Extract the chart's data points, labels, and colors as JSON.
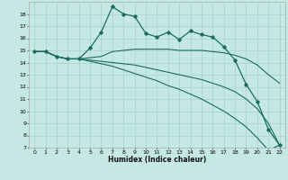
{
  "xlabel": "Humidex (Indice chaleur)",
  "ylabel": "",
  "bg_color": "#c5e8e5",
  "grid_color": "#aed4d0",
  "line_color": "#1a6b60",
  "xlim": [
    -0.5,
    22.5
  ],
  "ylim": [
    7,
    19
  ],
  "yticks": [
    7,
    8,
    9,
    10,
    11,
    12,
    13,
    14,
    15,
    16,
    17,
    18
  ],
  "xticks": [
    0,
    1,
    2,
    3,
    4,
    5,
    6,
    7,
    8,
    9,
    10,
    11,
    12,
    13,
    14,
    15,
    16,
    17,
    18,
    19,
    20,
    21,
    22
  ],
  "series": [
    {
      "x": [
        0,
        1,
        2,
        3,
        4,
        5,
        6,
        7,
        8,
        9,
        10,
        11,
        12,
        13,
        14,
        15,
        16,
        17,
        18,
        19,
        20,
        21,
        22
      ],
      "y": [
        14.9,
        14.9,
        14.5,
        14.3,
        14.3,
        15.2,
        16.5,
        18.6,
        18.0,
        17.8,
        16.4,
        16.1,
        16.5,
        15.9,
        16.6,
        16.3,
        16.1,
        15.3,
        14.2,
        12.2,
        10.8,
        8.5,
        7.2
      ],
      "marker": "D",
      "markersize": 1.8,
      "linewidth": 0.9
    },
    {
      "x": [
        0,
        1,
        2,
        3,
        4,
        5,
        6,
        7,
        8,
        9,
        10,
        11,
        12,
        13,
        14,
        15,
        16,
        17,
        18,
        19,
        20,
        21,
        22
      ],
      "y": [
        14.9,
        14.9,
        14.5,
        14.3,
        14.3,
        14.4,
        14.5,
        14.9,
        15.0,
        15.1,
        15.1,
        15.1,
        15.1,
        15.0,
        15.0,
        15.0,
        14.9,
        14.8,
        14.6,
        14.3,
        13.8,
        13.0,
        12.3
      ],
      "marker": null,
      "markersize": 0,
      "linewidth": 0.8
    },
    {
      "x": [
        0,
        1,
        2,
        3,
        4,
        5,
        6,
        7,
        8,
        9,
        10,
        11,
        12,
        13,
        14,
        15,
        16,
        17,
        18,
        19,
        20,
        21,
        22
      ],
      "y": [
        14.9,
        14.9,
        14.5,
        14.3,
        14.3,
        14.2,
        14.1,
        14.0,
        13.9,
        13.8,
        13.6,
        13.4,
        13.2,
        13.0,
        12.8,
        12.6,
        12.3,
        12.0,
        11.6,
        11.0,
        10.2,
        9.0,
        7.2
      ],
      "marker": null,
      "markersize": 0,
      "linewidth": 0.8
    },
    {
      "x": [
        0,
        1,
        2,
        3,
        4,
        5,
        6,
        7,
        8,
        9,
        10,
        11,
        12,
        13,
        14,
        15,
        16,
        17,
        18,
        19,
        20,
        21,
        22
      ],
      "y": [
        14.9,
        14.9,
        14.5,
        14.3,
        14.3,
        14.1,
        13.9,
        13.7,
        13.4,
        13.1,
        12.8,
        12.5,
        12.1,
        11.8,
        11.4,
        11.0,
        10.5,
        10.0,
        9.4,
        8.7,
        7.8,
        6.8,
        7.2
      ],
      "marker": null,
      "markersize": 0,
      "linewidth": 0.8
    }
  ]
}
